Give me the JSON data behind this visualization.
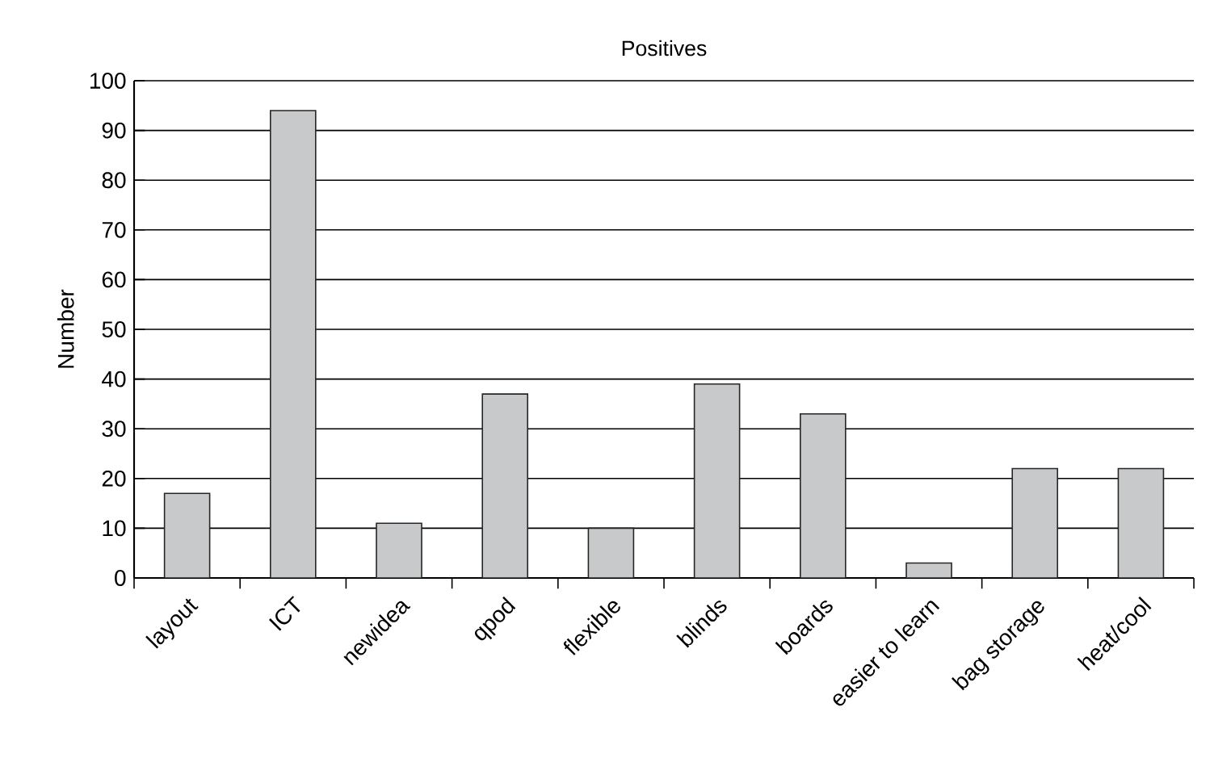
{
  "chart_data": {
    "type": "bar",
    "title": "Positives",
    "ylabel": "Number",
    "categories": [
      "layout",
      "ICT",
      "newidea",
      "qpod",
      "flexible",
      "blinds",
      "boards",
      "easier to learn",
      "bag storage",
      "heat/cool"
    ],
    "values": [
      17,
      94,
      11,
      37,
      10,
      39,
      33,
      3,
      22,
      22
    ],
    "color": "#c8c9cb",
    "ylim": [
      0,
      100
    ],
    "yticks": [
      0,
      10,
      20,
      30,
      40,
      50,
      60,
      70,
      80,
      90,
      100
    ],
    "grid": "y"
  }
}
